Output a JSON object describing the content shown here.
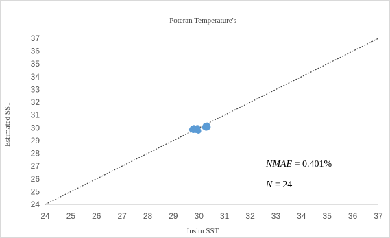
{
  "chart_data": {
    "type": "scatter",
    "title": "Poteran Temperature's",
    "xlabel": "Insitu SST",
    "ylabel": "Estimated SST",
    "xlim": [
      24,
      37
    ],
    "ylim": [
      24,
      37
    ],
    "xticks": [
      "24",
      "25",
      "26",
      "27",
      "28",
      "29",
      "30",
      "31",
      "32",
      "33",
      "34",
      "35",
      "36",
      "37"
    ],
    "yticks": [
      "24",
      "25",
      "26",
      "27",
      "28",
      "29",
      "30",
      "31",
      "32",
      "33",
      "34",
      "35",
      "36",
      "37"
    ],
    "grid": false,
    "reference_line": {
      "x": [
        24,
        37
      ],
      "y": [
        24,
        37
      ],
      "style": "dotted"
    },
    "series": [
      {
        "color": "#5b9bd5",
        "points": [
          {
            "x": 29.72,
            "y": 29.85
          },
          {
            "x": 29.75,
            "y": 29.95
          },
          {
            "x": 29.78,
            "y": 29.8
          },
          {
            "x": 29.8,
            "y": 30.0
          },
          {
            "x": 29.82,
            "y": 29.9
          },
          {
            "x": 29.85,
            "y": 29.85
          },
          {
            "x": 29.87,
            "y": 29.95
          },
          {
            "x": 29.9,
            "y": 29.8
          },
          {
            "x": 29.92,
            "y": 29.9
          },
          {
            "x": 29.94,
            "y": 30.0
          },
          {
            "x": 29.96,
            "y": 29.85
          },
          {
            "x": 29.98,
            "y": 29.75
          },
          {
            "x": 29.95,
            "y": 29.95
          },
          {
            "x": 29.88,
            "y": 29.9
          },
          {
            "x": 29.76,
            "y": 29.9
          },
          {
            "x": 29.83,
            "y": 29.97
          },
          {
            "x": 30.22,
            "y": 30.05
          },
          {
            "x": 30.25,
            "y": 30.15
          },
          {
            "x": 30.28,
            "y": 29.98
          },
          {
            "x": 30.3,
            "y": 30.1
          },
          {
            "x": 30.32,
            "y": 30.2
          },
          {
            "x": 30.35,
            "y": 30.05
          },
          {
            "x": 30.27,
            "y": 30.08
          },
          {
            "x": 30.33,
            "y": 30.12
          }
        ]
      }
    ],
    "annotations": [
      {
        "label": "NMAE",
        "text": " = 0.401%"
      },
      {
        "label": "N",
        "text": " = 24"
      }
    ]
  }
}
